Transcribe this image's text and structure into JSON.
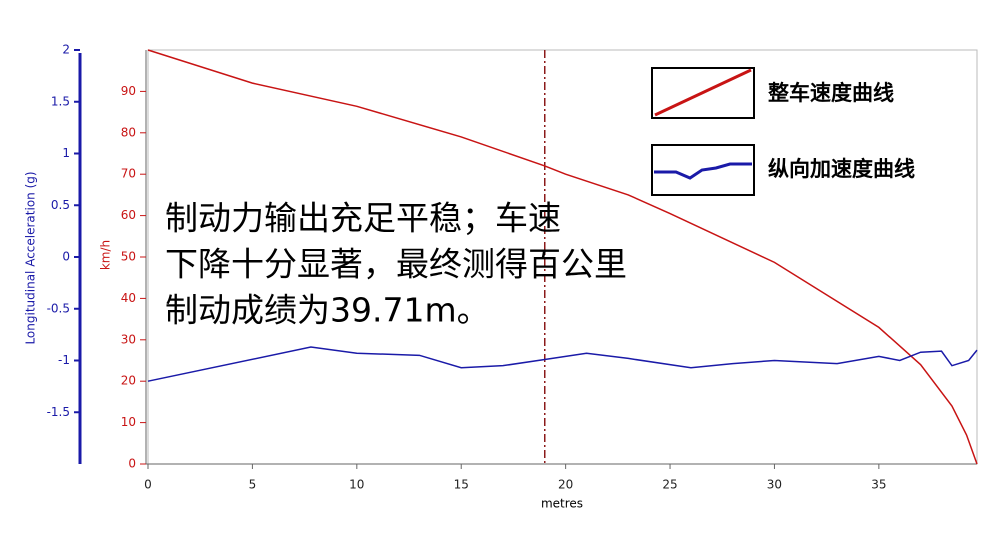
{
  "chart_data": {
    "type": "line",
    "xlabel": "metres",
    "ylabel": "km/h",
    "y2label": "Longitudinal Acceleration (g)",
    "xlim": [
      0,
      39.7
    ],
    "xticks": [
      0,
      5,
      10,
      15,
      20,
      25,
      30,
      35
    ],
    "ylim": [
      0,
      100
    ],
    "yticks": [
      0,
      10,
      20,
      30,
      40,
      50,
      60,
      70,
      80,
      90
    ],
    "y2lim": [
      -2,
      2
    ],
    "y2ticks": [
      -1.5,
      -1,
      -0.5,
      0,
      0.5,
      1,
      1.5,
      2
    ],
    "marker_x": 19,
    "annotation_lines": [
      "制动力输出充足平稳；车速",
      "下降十分显著，最终测得百公里",
      "制动成绩为39.71m。"
    ],
    "series": [
      {
        "name": "整车速度曲线",
        "color": "#c81414",
        "x": [
          0,
          5,
          10,
          15,
          19,
          20,
          23,
          25,
          30,
          35,
          37,
          38.5,
          39.2,
          39.7
        ],
        "values": [
          100,
          92,
          86.4,
          79,
          72,
          70,
          65,
          60.5,
          48.7,
          33,
          24,
          14,
          7,
          0
        ]
      },
      {
        "name": "纵向加速度曲线",
        "color": "#1a1aa8",
        "axis": "y2",
        "x": [
          0,
          7.8,
          10,
          13,
          15,
          17,
          19,
          21,
          23,
          26,
          28,
          30,
          33,
          35,
          36,
          37,
          38,
          38.5,
          39.3,
          39.7
        ],
        "values": [
          -1.2,
          -0.87,
          -0.93,
          -0.95,
          -1.07,
          -1.05,
          -0.99,
          -0.93,
          -0.98,
          -1.07,
          -1.03,
          -1.0,
          -1.03,
          -0.96,
          -1.0,
          -0.92,
          -0.91,
          -1.05,
          -1.0,
          -0.9
        ]
      }
    ]
  }
}
